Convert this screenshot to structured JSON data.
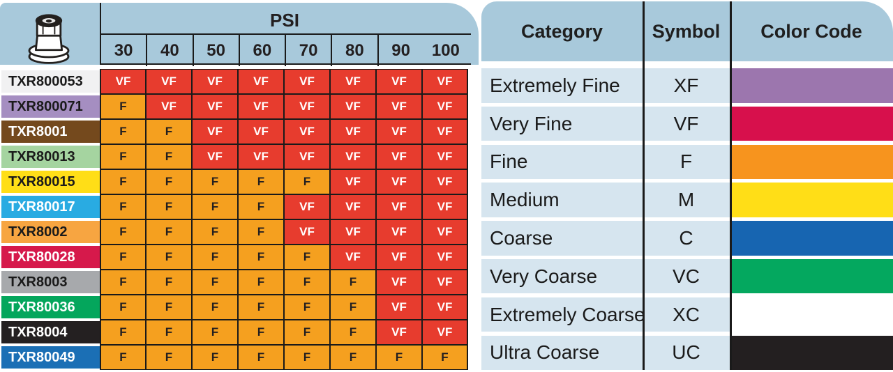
{
  "left_table": {
    "psi_title": "PSI",
    "psi_columns": [
      "30",
      "40",
      "50",
      "60",
      "70",
      "80",
      "90",
      "100"
    ],
    "cell_colors": {
      "VF": {
        "bg": "#e73c2e",
        "fg": "#ffffff"
      },
      "F": {
        "bg": "#f5a01f",
        "fg": "#231f20"
      }
    },
    "rows": [
      {
        "model": "TXR800053",
        "label_bg": "#f1f1f2",
        "label_fg": "#1a1a1a",
        "values": [
          "VF",
          "VF",
          "VF",
          "VF",
          "VF",
          "VF",
          "VF",
          "VF"
        ]
      },
      {
        "model": "TXR800071",
        "label_bg": "#a58ec1",
        "label_fg": "#1a1a1a",
        "values": [
          "F",
          "VF",
          "VF",
          "VF",
          "VF",
          "VF",
          "VF",
          "VF"
        ]
      },
      {
        "model": "TXR8001",
        "label_bg": "#74491d",
        "label_fg": "#ffffff",
        "values": [
          "F",
          "F",
          "VF",
          "VF",
          "VF",
          "VF",
          "VF",
          "VF"
        ]
      },
      {
        "model": "TXR80013",
        "label_bg": "#a5d4a0",
        "label_fg": "#1a1a1a",
        "values": [
          "F",
          "F",
          "VF",
          "VF",
          "VF",
          "VF",
          "VF",
          "VF"
        ]
      },
      {
        "model": "TXR80015",
        "label_bg": "#ffde17",
        "label_fg": "#1a1a1a",
        "values": [
          "F",
          "F",
          "F",
          "F",
          "F",
          "VF",
          "VF",
          "VF"
        ]
      },
      {
        "model": "TXR80017",
        "label_bg": "#29abe2",
        "label_fg": "#ffffff",
        "values": [
          "F",
          "F",
          "F",
          "F",
          "VF",
          "VF",
          "VF",
          "VF"
        ]
      },
      {
        "model": "TXR8002",
        "label_bg": "#f7a541",
        "label_fg": "#1a1a1a",
        "values": [
          "F",
          "F",
          "F",
          "F",
          "VF",
          "VF",
          "VF",
          "VF"
        ]
      },
      {
        "model": "TXR80028",
        "label_bg": "#d6194b",
        "label_fg": "#ffffff",
        "values": [
          "F",
          "F",
          "F",
          "F",
          "F",
          "VF",
          "VF",
          "VF"
        ]
      },
      {
        "model": "TXR8003",
        "label_bg": "#a7a9ac",
        "label_fg": "#1a1a1a",
        "values": [
          "F",
          "F",
          "F",
          "F",
          "F",
          "F",
          "VF",
          "VF"
        ]
      },
      {
        "model": "TXR80036",
        "label_bg": "#04a65c",
        "label_fg": "#ffffff",
        "values": [
          "F",
          "F",
          "F",
          "F",
          "F",
          "F",
          "VF",
          "VF"
        ]
      },
      {
        "model": "TXR8004",
        "label_bg": "#242021",
        "label_fg": "#ffffff",
        "values": [
          "F",
          "F",
          "F",
          "F",
          "F",
          "F",
          "VF",
          "VF"
        ]
      },
      {
        "model": "TXR80049",
        "label_bg": "#1b6fb5",
        "label_fg": "#ffffff",
        "values": [
          "F",
          "F",
          "F",
          "F",
          "F",
          "F",
          "F",
          "F"
        ]
      }
    ]
  },
  "legend_table": {
    "headers": [
      "Category",
      "Symbol",
      "Color Code"
    ],
    "rows": [
      {
        "category": "Extremely Fine",
        "symbol": "XF",
        "color": "#9c76ae"
      },
      {
        "category": "Very Fine",
        "symbol": "VF",
        "color": "#d7104c"
      },
      {
        "category": "Fine",
        "symbol": "F",
        "color": "#f7941e"
      },
      {
        "category": "Medium",
        "symbol": "M",
        "color": "#ffde17"
      },
      {
        "category": "Coarse",
        "symbol": "C",
        "color": "#1765b1"
      },
      {
        "category": "Very Coarse",
        "symbol": "VC",
        "color": "#04a85f"
      },
      {
        "category": "Extremely Coarse",
        "symbol": "XC",
        "color": "#ffffff"
      },
      {
        "category": "Ultra Coarse",
        "symbol": "UC",
        "color": "#231f20"
      }
    ]
  },
  "colors": {
    "header_bg": "#a8c9db",
    "row_bg": "#d6e5ef",
    "grid_line": "#1a1a1a",
    "vf_cell": "#e73c2e",
    "f_cell": "#f5a01f"
  },
  "chart_data": [
    {
      "type": "table",
      "title": "Droplet size classification by spray pressure (PSI)",
      "columns": [
        "Tip",
        "30",
        "40",
        "50",
        "60",
        "70",
        "80",
        "90",
        "100"
      ],
      "rows": [
        [
          "TXR800053",
          "VF",
          "VF",
          "VF",
          "VF",
          "VF",
          "VF",
          "VF",
          "VF"
        ],
        [
          "TXR800071",
          "F",
          "VF",
          "VF",
          "VF",
          "VF",
          "VF",
          "VF",
          "VF"
        ],
        [
          "TXR8001",
          "F",
          "F",
          "VF",
          "VF",
          "VF",
          "VF",
          "VF",
          "VF"
        ],
        [
          "TXR80013",
          "F",
          "F",
          "VF",
          "VF",
          "VF",
          "VF",
          "VF",
          "VF"
        ],
        [
          "TXR80015",
          "F",
          "F",
          "F",
          "F",
          "F",
          "VF",
          "VF",
          "VF"
        ],
        [
          "TXR80017",
          "F",
          "F",
          "F",
          "F",
          "VF",
          "VF",
          "VF",
          "VF"
        ],
        [
          "TXR8002",
          "F",
          "F",
          "F",
          "F",
          "VF",
          "VF",
          "VF",
          "VF"
        ],
        [
          "TXR80028",
          "F",
          "F",
          "F",
          "F",
          "F",
          "VF",
          "VF",
          "VF"
        ],
        [
          "TXR8003",
          "F",
          "F",
          "F",
          "F",
          "F",
          "F",
          "VF",
          "VF"
        ],
        [
          "TXR80036",
          "F",
          "F",
          "F",
          "F",
          "F",
          "F",
          "VF",
          "VF"
        ],
        [
          "TXR8004",
          "F",
          "F",
          "F",
          "F",
          "F",
          "F",
          "VF",
          "VF"
        ],
        [
          "TXR80049",
          "F",
          "F",
          "F",
          "F",
          "F",
          "F",
          "F",
          "F"
        ]
      ]
    },
    {
      "type": "table",
      "title": "Droplet size category legend",
      "columns": [
        "Category",
        "Symbol",
        "Color Code"
      ],
      "rows": [
        [
          "Extremely Fine",
          "XF",
          "purple"
        ],
        [
          "Very Fine",
          "VF",
          "crimson"
        ],
        [
          "Fine",
          "F",
          "orange"
        ],
        [
          "Medium",
          "M",
          "yellow"
        ],
        [
          "Coarse",
          "C",
          "blue"
        ],
        [
          "Very Coarse",
          "VC",
          "green"
        ],
        [
          "Extremely Coarse",
          "XC",
          "white"
        ],
        [
          "Ultra Coarse",
          "UC",
          "black"
        ]
      ]
    }
  ]
}
